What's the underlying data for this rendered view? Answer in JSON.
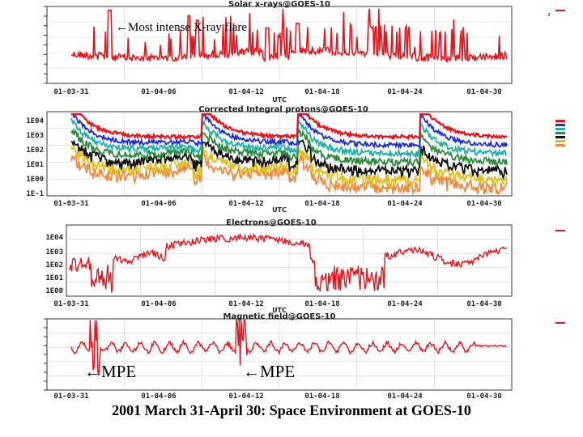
{
  "caption": "2001 March 31-April 30: Space Environment at GOES-10",
  "colors": {
    "red": "#e8141c",
    "blue": "#1a2fd6",
    "teal": "#1bb3a6",
    "green": "#2c8a3a",
    "black": "#111111",
    "yellow": "#e0c020",
    "orange": "#f08a40",
    "axis": "#333333",
    "grid": "#cfcfcf"
  },
  "chart_data": [
    {
      "type": "line",
      "title": "Solar x-rays@GOES-10",
      "xlabel": "UTC",
      "x_tick_labels": [
        "01-03-31",
        "01-04-06",
        "01-04-12",
        "01-04-18",
        "01-04-24",
        "01-04-30"
      ],
      "x_range": [
        "2001-03-31",
        "2001-04-30"
      ],
      "annotations": [
        {
          "text": "←Most intense X-ray flare",
          "x": "2001-04-02"
        }
      ],
      "series": [
        {
          "color": "red",
          "kind": "xray"
        }
      ]
    },
    {
      "type": "line",
      "title": "Corrected Integral protons@GOES-10",
      "xlabel": "UTC",
      "x_tick_labels": [
        "01-03-31",
        "01-04-06",
        "01-04-12",
        "01-04-18",
        "01-04-24",
        "01-04-30"
      ],
      "y_tick_labels": [
        "1E04",
        "1E03",
        "1E02",
        "1E01",
        "1E00",
        "1E-1"
      ],
      "x_range": [
        "2001-03-31",
        "2001-04-30"
      ],
      "series": [
        {
          "color": "red",
          "kind": "proton",
          "level": 0
        },
        {
          "color": "blue",
          "kind": "proton",
          "level": 1
        },
        {
          "color": "teal",
          "kind": "proton",
          "level": 2
        },
        {
          "color": "green",
          "kind": "proton",
          "level": 3
        },
        {
          "color": "black",
          "kind": "proton",
          "level": 4
        },
        {
          "color": "yellow",
          "kind": "proton",
          "level": 5
        },
        {
          "color": "orange",
          "kind": "proton",
          "level": 6
        }
      ]
    },
    {
      "type": "line",
      "title": "Electrons@GOES-10",
      "xlabel": "UTC",
      "x_tick_labels": [
        "01-03-31",
        "01-04-06",
        "01-04-12",
        "01-04-18",
        "01-04-24",
        "01-04-30"
      ],
      "y_tick_labels": [
        "1E04",
        "1E03",
        "1E02",
        "1E01",
        "1E00"
      ],
      "x_range": [
        "2001-03-31",
        "2001-04-30"
      ],
      "series": [
        {
          "color": "red",
          "kind": "electron"
        }
      ]
    },
    {
      "type": "line",
      "title": "Magnetic field@GOES-10",
      "xlabel": "UTC",
      "x_tick_labels": [
        "01-03-31",
        "01-04-06",
        "01-04-12",
        "01-04-18",
        "01-04-24",
        "01-04-30"
      ],
      "x_range": [
        "2001-03-31",
        "2001-04-30"
      ],
      "annotations": [
        {
          "text": "←MPE",
          "x": "2001-04-01"
        },
        {
          "text": "←MPE",
          "x": "2001-04-11"
        }
      ],
      "series": [
        {
          "color": "red",
          "kind": "magnetic"
        }
      ]
    }
  ]
}
